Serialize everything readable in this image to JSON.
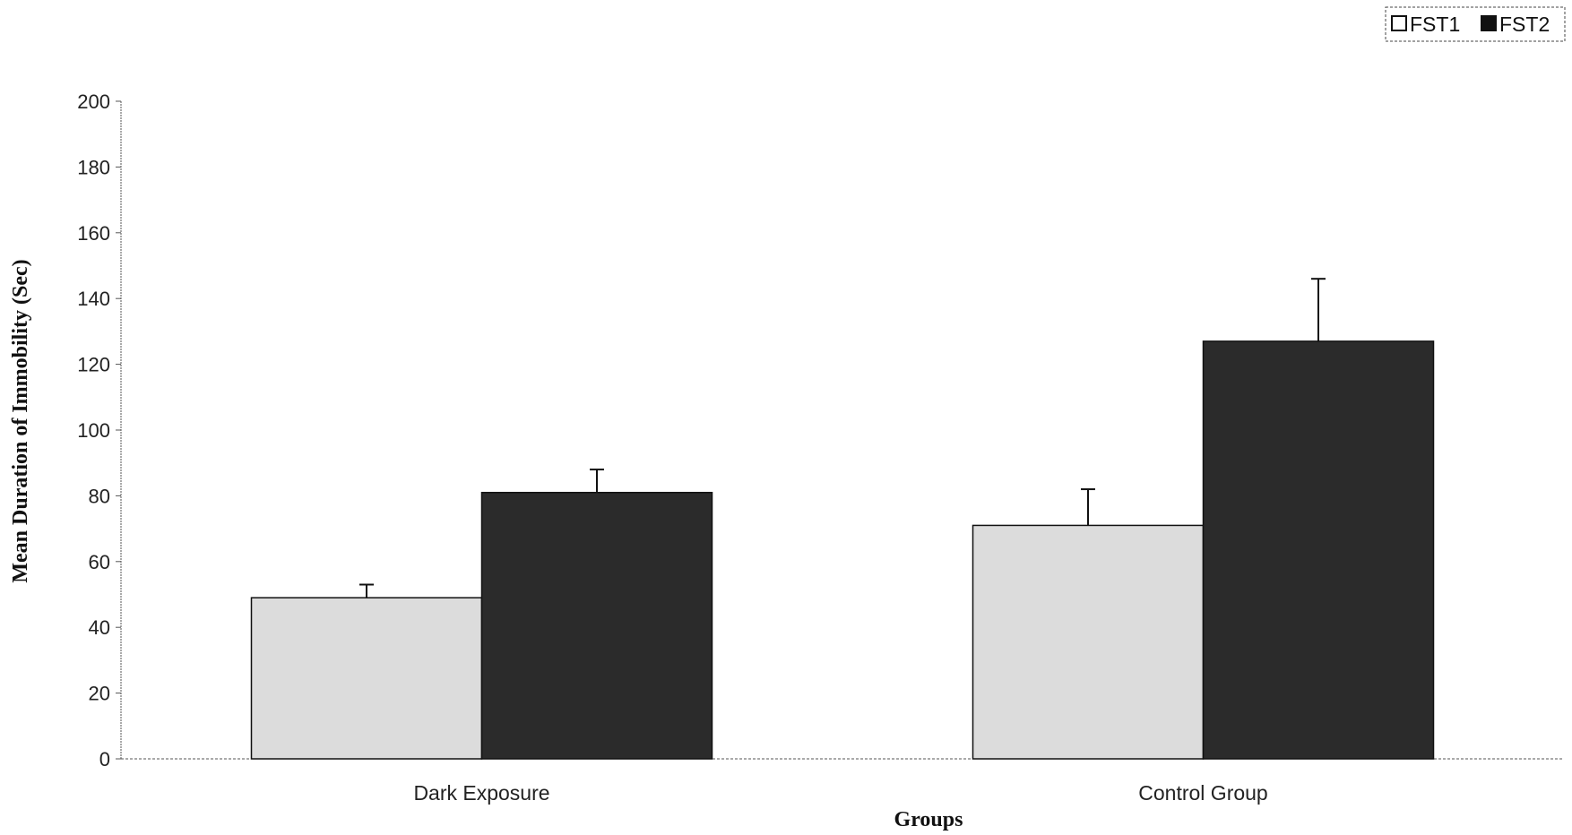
{
  "chart_data": {
    "type": "bar",
    "categories": [
      "Dark Exposure",
      "Control Group"
    ],
    "series": [
      {
        "name": "FST1",
        "values": [
          49,
          71
        ],
        "errors": [
          4,
          11
        ],
        "color": "#dcdcdc"
      },
      {
        "name": "FST2",
        "values": [
          81,
          127
        ],
        "errors": [
          7,
          19
        ],
        "color": "#2b2b2b"
      }
    ],
    "title": "",
    "xlabel": "Groups",
    "ylabel": "Mean Duration of Immobility (Sec)",
    "ylim": [
      0,
      200
    ],
    "yticks": [
      0,
      20,
      40,
      60,
      80,
      100,
      120,
      140,
      160,
      180,
      200
    ],
    "grid": false,
    "legend_position": "top-right"
  }
}
